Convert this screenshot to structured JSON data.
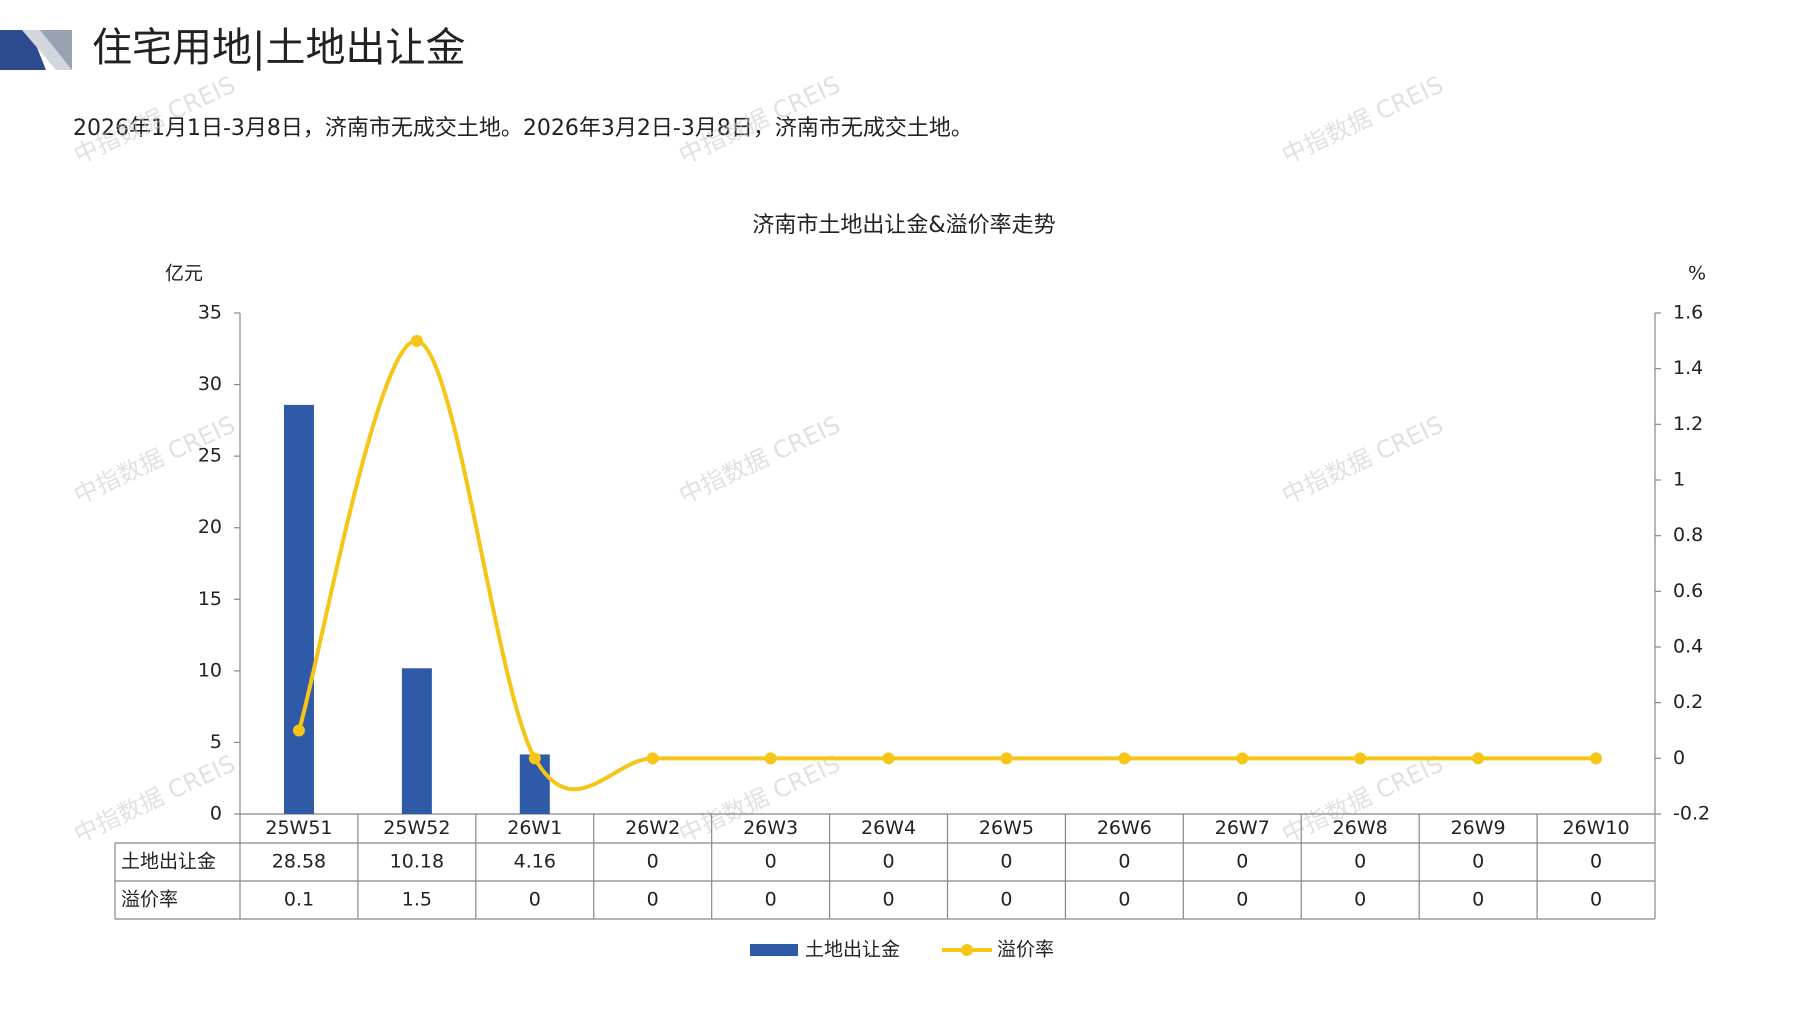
{
  "chart_data": {
    "type": "combo",
    "header": "住宅用地|土地出让金",
    "subtitle": "2026年1月1日-3月8日，济南市无成交土地。2026年3月2日-3月8日，济南市无成交土地。",
    "title": "济南市土地出让金&溢价率走势",
    "y_unit": "亿元",
    "y2_unit": "%",
    "watermark": "中指数据 CREIS",
    "categories": [
      "25W51",
      "25W52",
      "26W1",
      "26W2",
      "26W3",
      "26W4",
      "26W5",
      "26W6",
      "26W7",
      "26W8",
      "26W9",
      "26W10"
    ],
    "series": [
      {
        "name": "土地出让金",
        "type": "bar",
        "color": "#2e5aa8",
        "values": [
          28.58,
          10.18,
          4.16,
          0,
          0,
          0,
          0,
          0,
          0,
          0,
          0,
          0
        ]
      },
      {
        "name": "溢价率",
        "type": "line",
        "axis": "y2",
        "color": "#f5c518",
        "values": [
          0.1,
          1.5,
          0,
          0,
          0,
          0,
          0,
          0,
          0,
          0,
          0,
          0
        ]
      }
    ],
    "ylim": [
      0,
      35
    ],
    "yticks": [
      0,
      5,
      10,
      15,
      20,
      25,
      30,
      35
    ],
    "y2lim": [
      -0.2,
      1.6
    ],
    "y2ticks": [
      -0.2,
      0,
      0.2,
      0.4,
      0.6,
      0.8,
      1,
      1.2,
      1.4,
      1.6
    ],
    "data_table": true,
    "legend": "bottom"
  }
}
